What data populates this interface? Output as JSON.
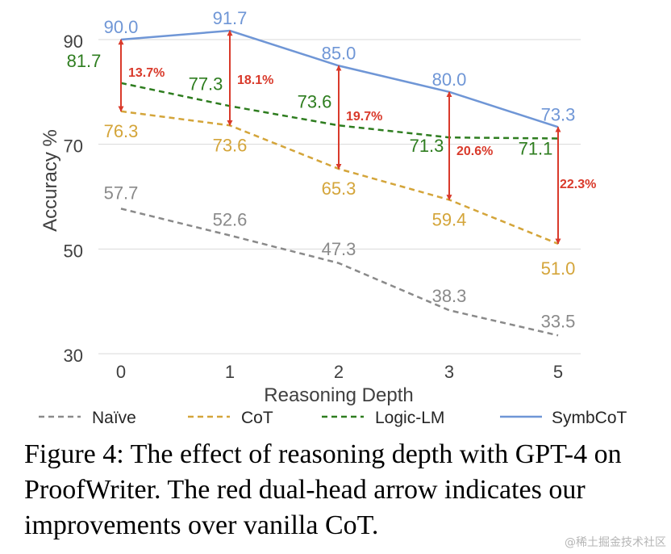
{
  "chart_data": {
    "type": "line",
    "categories": [
      "0",
      "1",
      "2",
      "3",
      "5"
    ],
    "xlabel": "Reasoning Depth",
    "ylabel": "Accuracy %",
    "yticks": [
      30,
      50,
      70,
      90
    ],
    "ylim": [
      30,
      92
    ],
    "grid": "horizontal",
    "legend_position": "bottom",
    "series": [
      {
        "name": "Naïve",
        "values": [
          57.7,
          52.6,
          47.3,
          38.3,
          33.5
        ],
        "labels": [
          "57.7",
          "52.6",
          "47.3",
          "38.3",
          "33.5"
        ],
        "color": "#8a8a8a",
        "style": "dashed"
      },
      {
        "name": "CoT",
        "values": [
          76.3,
          73.6,
          65.3,
          59.4,
          51.0
        ],
        "labels": [
          "76.3",
          "73.6",
          "65.3",
          "59.4",
          "51.0"
        ],
        "color": "#d4a53a",
        "style": "dashed"
      },
      {
        "name": "Logic-LM",
        "values": [
          81.7,
          77.3,
          73.6,
          71.3,
          71.1
        ],
        "labels": [
          "81.7",
          "77.3",
          "73.6",
          "71.3",
          "71.1"
        ],
        "color": "#2e7d1f",
        "style": "dashed"
      },
      {
        "name": "SymbCoT",
        "values": [
          90.0,
          91.7,
          85.0,
          80.0,
          73.3
        ],
        "labels": [
          "90.0",
          "91.7",
          "85.0",
          "80.0",
          "73.3"
        ],
        "color": "#6f96d6",
        "style": "solid"
      }
    ],
    "annotations": [
      {
        "label": "13.7%",
        "from": 76.3,
        "to": 90.0
      },
      {
        "label": "18.1%",
        "from": 73.6,
        "to": 91.7
      },
      {
        "label": "19.7%",
        "from": 65.3,
        "to": 85.0
      },
      {
        "label": "20.6%",
        "from": 59.4,
        "to": 80.0
      },
      {
        "label": "22.3%",
        "from": 51.0,
        "to": 73.3
      }
    ],
    "annotation_color": "#d93a2b"
  },
  "caption": "Figure 4: The effect of reasoning depth with GPT-4 on ProofWriter. The red dual-head arrow indicates our improvements over vanilla CoT.",
  "watermark": "@稀土掘金技术社区"
}
